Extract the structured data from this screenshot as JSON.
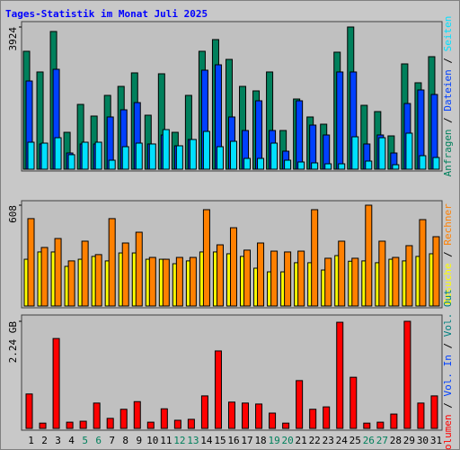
{
  "title": "Tages-Statistik im Monat Juli 2025",
  "categories": [
    "1",
    "2",
    "3",
    "4",
    "5",
    "6",
    "7",
    "8",
    "9",
    "10",
    "11",
    "12",
    "13",
    "14",
    "15",
    "16",
    "17",
    "18",
    "19",
    "20",
    "21",
    "22",
    "23",
    "24",
    "25",
    "26",
    "27",
    "28",
    "29",
    "30",
    "31"
  ],
  "category_colors": [
    "#000000",
    "#000000",
    "#000000",
    "#000000",
    "#00805c",
    "#00805c",
    "#000000",
    "#000000",
    "#000000",
    "#000000",
    "#000000",
    "#00805c",
    "#00805c",
    "#000000",
    "#000000",
    "#000000",
    "#000000",
    "#000000",
    "#00805c",
    "#00805c",
    "#000000",
    "#000000",
    "#000000",
    "#000000",
    "#000000",
    "#00805c",
    "#00805c",
    "#000000",
    "#000000",
    "#000000",
    "#000000"
  ],
  "legend_separator": " / ",
  "chart_data": [
    {
      "type": "bar",
      "ylim": [
        0,
        3924
      ],
      "yticks": [
        3924
      ],
      "series": [
        {
          "name": "Anfragen",
          "color": "#00805c",
          "values": [
            3254,
            2683,
            3800,
            1018,
            1788,
            1466,
            2037,
            2285,
            2658,
            1490,
            2633,
            1018,
            2037,
            3254,
            3577,
            3030,
            2285,
            2161,
            2683,
            1068,
            1937,
            1441,
            1242,
            3229,
            3924,
            1763,
            1590,
            919,
            2906,
            2385,
            3105
          ]
        },
        {
          "name": "Dateien",
          "color": "#0040ff",
          "values": [
            2434,
            696,
            2757,
            447,
            696,
            696,
            1441,
            1639,
            1838,
            696,
            944,
            646,
            820,
            2732,
            2881,
            1441,
            1068,
            1888,
            1068,
            497,
            1888,
            1217,
            944,
            2683,
            2683,
            696,
            944,
            447,
            1813,
            2186,
            2062
          ]
        },
        {
          "name": "Seiten",
          "color": "#00e0ff",
          "values": [
            745,
            720,
            869,
            400,
            745,
            745,
            248,
            621,
            720,
            696,
            1093,
            646,
            820,
            1043,
            621,
            770,
            298,
            298,
            720,
            248,
            199,
            174,
            149,
            149,
            894,
            224,
            869,
            124,
            994,
            373,
            323
          ]
        }
      ]
    },
    {
      "type": "bar",
      "ylim": [
        0,
        608
      ],
      "yticks": [
        608
      ],
      "series": [
        {
          "name": "Besuche",
          "color": "#ffff00",
          "values": [
            282,
            326,
            326,
            239,
            282,
            299,
            272,
            320,
            320,
            282,
            282,
            255,
            272,
            326,
            326,
            315,
            299,
            228,
            206,
            206,
            261,
            261,
            217,
            304,
            270,
            272,
            261,
            282,
            272,
            299,
            315
          ]
        },
        {
          "name": "Rechner",
          "color": "#ff8000",
          "values": [
            527,
            353,
            407,
            272,
            391,
            310,
            527,
            380,
            445,
            293,
            282,
            293,
            293,
            581,
            369,
            472,
            337,
            380,
            331,
            326,
            331,
            581,
            288,
            391,
            288,
            608,
            391,
            293,
            364,
            521,
            418
          ]
        }
      ]
    },
    {
      "type": "bar",
      "ylim": [
        0,
        2.24
      ],
      "yticks": [
        {
          "value": 2.24,
          "label": "2.24 GB"
        }
      ],
      "series": [
        {
          "name": "Volumen",
          "color": "#ff0000",
          "values": [
            0.72,
            0.11,
            1.88,
            0.13,
            0.15,
            0.53,
            0.21,
            0.4,
            0.56,
            0.13,
            0.41,
            0.17,
            0.19,
            0.68,
            1.62,
            0.55,
            0.53,
            0.51,
            0.32,
            0.11,
            1.0,
            0.4,
            0.45,
            2.22,
            1.07,
            0.11,
            0.13,
            0.3,
            2.24,
            0.53,
            0.68
          ]
        },
        {
          "name": "Vol. In",
          "color": "#0040ff",
          "values": [
            0,
            0,
            0,
            0,
            0,
            0,
            0,
            0,
            0,
            0,
            0,
            0,
            0,
            0,
            0,
            0,
            0,
            0,
            0,
            0,
            0,
            0,
            0,
            0,
            0,
            0,
            0,
            0,
            0,
            0,
            0
          ]
        },
        {
          "name": "Vol. Out",
          "color": "#008080",
          "values": [
            0,
            0,
            0,
            0,
            0,
            0,
            0,
            0,
            0,
            0,
            0,
            0,
            0,
            0,
            0,
            0,
            0,
            0,
            0,
            0,
            0,
            0,
            0,
            0,
            0,
            0,
            0,
            0,
            0,
            0,
            0
          ]
        }
      ]
    }
  ]
}
